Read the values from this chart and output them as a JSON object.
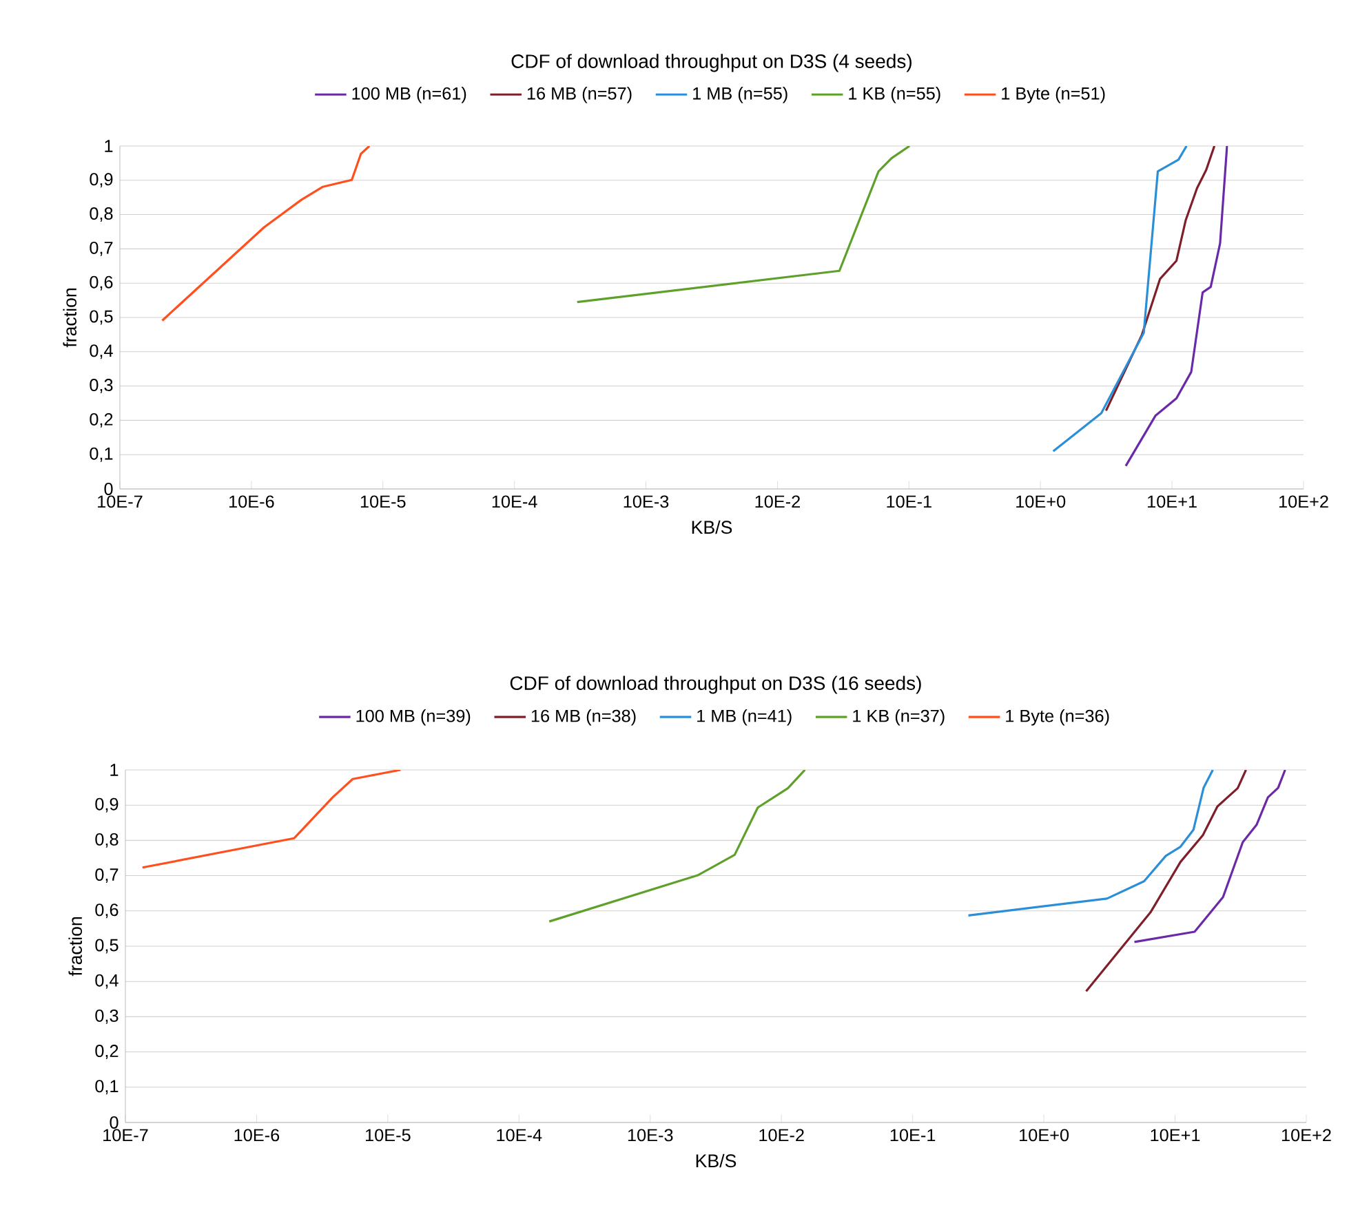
{
  "chart_data": [
    {
      "type": "line",
      "title": "CDF of download throughput on D3S (4 seeds)",
      "xlabel": "KB/S",
      "ylabel": "fraction",
      "log": "x",
      "grid": "y",
      "legend": "top",
      "xlim": [
        1e-06,
        1000
      ],
      "ylim": [
        0,
        1
      ],
      "xticks": [
        {
          "value": 1e-06,
          "label": "10E-7"
        },
        {
          "value": 1e-05,
          "label": "10E-6"
        },
        {
          "value": 0.0001,
          "label": "10E-5"
        },
        {
          "value": 0.001,
          "label": "10E-4"
        },
        {
          "value": 0.01,
          "label": "10E-3"
        },
        {
          "value": 0.1,
          "label": "10E-2"
        },
        {
          "value": 1,
          "label": "10E-1"
        },
        {
          "value": 10,
          "label": "10E+0"
        },
        {
          "value": 100,
          "label": "10E+1"
        },
        {
          "value": 1000,
          "label": "10E+2"
        }
      ],
      "yticks": [
        0,
        {
          "value": 0.1,
          "label": "0,1"
        },
        {
          "value": 0.2,
          "label": "0,2"
        },
        {
          "value": 0.3,
          "label": "0,3"
        },
        {
          "value": 0.4,
          "label": "0,4"
        },
        {
          "value": 0.5,
          "label": "0,5"
        },
        {
          "value": 0.6,
          "label": "0,6"
        },
        {
          "value": 0.7,
          "label": "0,7"
        },
        {
          "value": 0.8,
          "label": "0,8"
        },
        {
          "value": 0.9,
          "label": "0,9"
        },
        1
      ],
      "series": [
        {
          "name": "100 MB (n=61)",
          "color": "#6a2aa8",
          "x": [
            44.5,
            75,
            108,
            140,
            171,
            197,
            232,
            262
          ],
          "values": [
            0.067,
            0.214,
            0.264,
            0.341,
            0.573,
            0.589,
            0.716,
            1.0
          ]
        },
        {
          "name": "16 MB (n=57)",
          "color": "#7f1f2a",
          "x": [
            31.5,
            59,
            81,
            108,
            127,
            155,
            182,
            210
          ],
          "values": [
            0.228,
            0.449,
            0.612,
            0.665,
            0.783,
            0.877,
            0.93,
            1.0
          ]
        },
        {
          "name": "1 MB (n=55)",
          "color": "#2a8fd6",
          "x": [
            12.5,
            29,
            61,
            78,
            112,
            129
          ],
          "values": [
            0.11,
            0.221,
            0.455,
            0.926,
            0.96,
            1.0
          ]
        },
        {
          "name": "1 KB (n=55)",
          "color": "#5ea02a",
          "x": [
            0.003,
            0.296,
            0.587,
            0.736,
            1.01
          ],
          "values": [
            0.545,
            0.636,
            0.926,
            0.964,
            1.0
          ]
        },
        {
          "name": "1 Byte (n=51)",
          "color": "#ff4f1f",
          "x": [
            2.1e-06,
            1.25e-05,
            2.4e-05,
            3.5e-05,
            5.8e-05,
            6.8e-05,
            7.9e-05
          ],
          "values": [
            0.491,
            0.763,
            0.843,
            0.881,
            0.901,
            0.977,
            1.0
          ]
        }
      ]
    },
    {
      "type": "line",
      "title": "CDF of download throughput on D3S (16 seeds)",
      "xlabel": "KB/S",
      "ylabel": "fraction",
      "log": "x",
      "grid": "y",
      "legend": "top",
      "xlim": [
        1e-06,
        1000
      ],
      "ylim": [
        0,
        1
      ],
      "xticks": [
        {
          "value": 1e-06,
          "label": "10E-7"
        },
        {
          "value": 1e-05,
          "label": "10E-6"
        },
        {
          "value": 0.0001,
          "label": "10E-5"
        },
        {
          "value": 0.001,
          "label": "10E-4"
        },
        {
          "value": 0.01,
          "label": "10E-3"
        },
        {
          "value": 0.1,
          "label": "10E-2"
        },
        {
          "value": 1,
          "label": "10E-1"
        },
        {
          "value": 10,
          "label": "10E+0"
        },
        {
          "value": 100,
          "label": "10E+1"
        },
        {
          "value": 1000,
          "label": "10E+2"
        }
      ],
      "yticks": [
        0,
        {
          "value": 0.1,
          "label": "0,1"
        },
        {
          "value": 0.2,
          "label": "0,2"
        },
        {
          "value": 0.3,
          "label": "0,3"
        },
        {
          "value": 0.4,
          "label": "0,4"
        },
        {
          "value": 0.5,
          "label": "0,5"
        },
        {
          "value": 0.6,
          "label": "0,6"
        },
        {
          "value": 0.7,
          "label": "0,7"
        },
        {
          "value": 0.8,
          "label": "0,8"
        },
        {
          "value": 0.9,
          "label": "0,9"
        },
        1
      ],
      "series": [
        {
          "name": "100 MB (n=39)",
          "color": "#6a2aa8",
          "x": [
            49,
            141,
            232,
            328,
            418,
            510,
            610,
            690
          ],
          "values": [
            0.512,
            0.541,
            0.639,
            0.795,
            0.844,
            0.922,
            0.949,
            1.0
          ]
        },
        {
          "name": "16 MB (n=38)",
          "color": "#7f1f2a",
          "x": [
            21,
            65,
            110,
            163,
            210,
            300,
            347
          ],
          "values": [
            0.372,
            0.596,
            0.739,
            0.815,
            0.896,
            0.948,
            1.0
          ]
        },
        {
          "name": "1 MB (n=41)",
          "color": "#2a8fd6",
          "x": [
            2.66,
            30.3,
            58,
            85,
            110,
            138,
            165,
            194
          ],
          "values": [
            0.587,
            0.635,
            0.684,
            0.756,
            0.782,
            0.83,
            0.949,
            1.0
          ]
        },
        {
          "name": "1 KB (n=37)",
          "color": "#5ea02a",
          "x": [
            0.0017,
            0.023,
            0.044,
            0.066,
            0.112,
            0.151
          ],
          "values": [
            0.57,
            0.701,
            0.759,
            0.893,
            0.948,
            1.0
          ]
        },
        {
          "name": "1 Byte (n=36)",
          "color": "#ff4f1f",
          "x": [
            1.35e-06,
            1.93e-05,
            3.8e-05,
            5.4e-05,
            0.000125
          ],
          "values": [
            0.723,
            0.806,
            0.922,
            0.974,
            1.0
          ]
        }
      ]
    }
  ]
}
